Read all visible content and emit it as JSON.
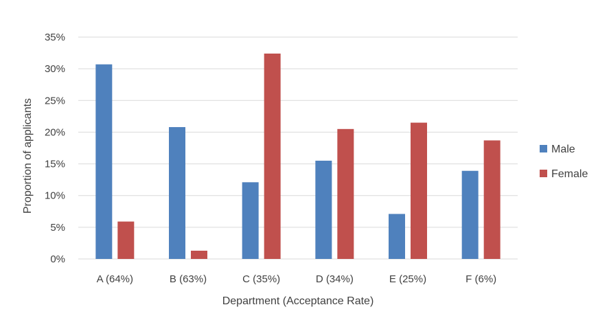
{
  "chart_data": {
    "type": "bar",
    "title": "",
    "xlabel": "Department (Acceptance Rate)",
    "ylabel": "Proportion of applicants",
    "categories": [
      "A (64%)",
      "B (63%)",
      "C (35%)",
      "D (34%)",
      "E (25%)",
      "F (6%)"
    ],
    "series": [
      {
        "name": "Male",
        "values": [
          30.7,
          20.8,
          12.1,
          15.5,
          7.1,
          13.9
        ]
      },
      {
        "name": "Female",
        "values": [
          5.9,
          1.3,
          32.4,
          20.5,
          21.5,
          18.7
        ]
      }
    ],
    "ylim": [
      0,
      35
    ],
    "yticks": [
      0,
      5,
      10,
      15,
      20,
      25,
      30,
      35
    ],
    "ytick_labels": [
      "0%",
      "5%",
      "10%",
      "15%",
      "20%",
      "25%",
      "30%",
      "35%"
    ],
    "grid": true,
    "legend_position": "right",
    "colors": {
      "Male": "#4f81bd",
      "Female": "#c0504d",
      "grid": "#d9d9d9",
      "text": "#404040"
    }
  }
}
